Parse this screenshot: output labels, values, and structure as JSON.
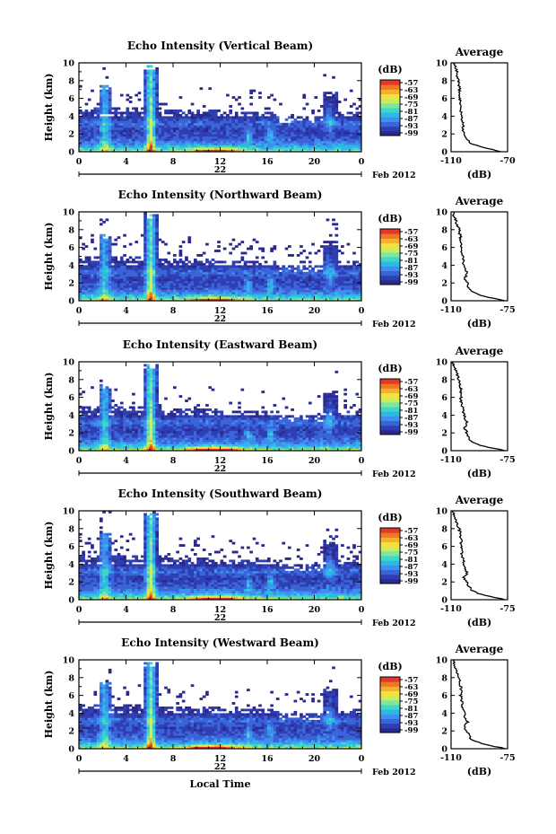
{
  "chart_data": [
    {
      "type": "heatmap",
      "title": "Echo Intensity (Vertical Beam)",
      "ylabel": "Height (km)",
      "xticks": [
        "0",
        "4",
        "8",
        "12",
        "16",
        "20",
        "0"
      ],
      "xlim": [
        0,
        24
      ],
      "yticks": [
        "0",
        "2",
        "4",
        "6",
        "8",
        "10"
      ],
      "ylim": [
        0,
        10
      ],
      "day_label": "22",
      "month_label": "Feb 2012",
      "colorbar_unit": "(dB)",
      "colorbar_ticks": [
        "-57",
        "-63",
        "-69",
        "-75",
        "-81",
        "-87",
        "-93",
        "-99"
      ],
      "average_title": "Average",
      "average_xlabel": "(dB)",
      "average_xticks": [
        "-110",
        "-70"
      ],
      "average_xlim": [
        -110,
        -70
      ],
      "average_profile": {
        "height_km": [
          0,
          0.5,
          1,
          1.5,
          2,
          2.5,
          3,
          4,
          5,
          6,
          7,
          8,
          9,
          10
        ],
        "db": [
          -74,
          -88,
          -97,
          -99,
          -101,
          -102,
          -101,
          -103,
          -103,
          -104,
          -104,
          -105,
          -106,
          -108
        ]
      }
    },
    {
      "type": "heatmap",
      "title": "Echo Intensity (Northward Beam)",
      "ylabel": "Height (km)",
      "xticks": [
        "0",
        "4",
        "8",
        "12",
        "16",
        "20",
        "0"
      ],
      "xlim": [
        0,
        24
      ],
      "yticks": [
        "0",
        "2",
        "4",
        "6",
        "8",
        "10"
      ],
      "ylim": [
        0,
        10
      ],
      "day_label": "22",
      "month_label": "Feb 2012",
      "colorbar_unit": "(dB)",
      "colorbar_ticks": [
        "-57",
        "-63",
        "-69",
        "-75",
        "-81",
        "-87",
        "-93",
        "-99"
      ],
      "average_title": "Average",
      "average_xlabel": "(dB)",
      "average_xticks": [
        "-110",
        "-75"
      ],
      "average_xlim": [
        -110,
        -75
      ],
      "average_profile": {
        "height_km": [
          0,
          0.5,
          1,
          1.5,
          2,
          2.5,
          3,
          4,
          5,
          6,
          7,
          8,
          9,
          10
        ],
        "db": [
          -76,
          -90,
          -97,
          -99,
          -100,
          -102,
          -100,
          -102,
          -103,
          -104,
          -104,
          -105,
          -107,
          -109
        ]
      }
    },
    {
      "type": "heatmap",
      "title": "Echo Intensity (Eastward Beam)",
      "ylabel": "Height (km)",
      "xticks": [
        "0",
        "4",
        "8",
        "12",
        "16",
        "20",
        "0"
      ],
      "xlim": [
        0,
        24
      ],
      "yticks": [
        "0",
        "2",
        "4",
        "6",
        "8",
        "10"
      ],
      "ylim": [
        0,
        10
      ],
      "day_label": "22",
      "month_label": "Feb 2012",
      "colorbar_unit": "(dB)",
      "colorbar_ticks": [
        "-57",
        "-63",
        "-69",
        "-75",
        "-81",
        "-87",
        "-93",
        "-99"
      ],
      "average_title": "Average",
      "average_xlabel": "(dB)",
      "average_xticks": [
        "-110",
        "-75"
      ],
      "average_xlim": [
        -110,
        -75
      ],
      "average_profile": {
        "height_km": [
          0,
          0.5,
          1,
          1.5,
          2,
          2.5,
          3,
          4,
          5,
          6,
          7,
          8,
          9,
          10
        ],
        "db": [
          -76,
          -90,
          -97,
          -99,
          -100,
          -102,
          -100,
          -102,
          -103,
          -104,
          -104,
          -105,
          -107,
          -109
        ]
      }
    },
    {
      "type": "heatmap",
      "title": "Echo Intensity (Southward Beam)",
      "ylabel": "Height (km)",
      "xticks": [
        "0",
        "4",
        "8",
        "12",
        "16",
        "20",
        "0"
      ],
      "xlim": [
        0,
        24
      ],
      "yticks": [
        "0",
        "2",
        "4",
        "6",
        "8",
        "10"
      ],
      "ylim": [
        0,
        10
      ],
      "day_label": "22",
      "month_label": "Feb 2012",
      "colorbar_unit": "(dB)",
      "colorbar_ticks": [
        "-57",
        "-63",
        "-69",
        "-75",
        "-81",
        "-87",
        "-93",
        "-99"
      ],
      "average_title": "Average",
      "average_xlabel": "(dB)",
      "average_xticks": [
        "-110",
        "-75"
      ],
      "average_xlim": [
        -110,
        -75
      ],
      "average_profile": {
        "height_km": [
          0,
          0.5,
          1,
          1.5,
          2,
          2.5,
          3,
          4,
          5,
          6,
          7,
          8,
          9,
          10
        ],
        "db": [
          -76,
          -90,
          -97,
          -99,
          -100,
          -102,
          -100,
          -102,
          -103,
          -104,
          -104,
          -105,
          -107,
          -109
        ]
      }
    },
    {
      "type": "heatmap",
      "title": "Echo Intensity (Westward Beam)",
      "ylabel": "Height (km)",
      "xticks": [
        "0",
        "4",
        "8",
        "12",
        "16",
        "20",
        "0"
      ],
      "xlim": [
        0,
        24
      ],
      "yticks": [
        "0",
        "2",
        "4",
        "6",
        "8",
        "10"
      ],
      "ylim": [
        0,
        10
      ],
      "day_label": "22",
      "month_label": "Feb 2012",
      "xlabel": "Local Time",
      "colorbar_unit": "(dB)",
      "colorbar_ticks": [
        "-57",
        "-63",
        "-69",
        "-75",
        "-81",
        "-87",
        "-93",
        "-99"
      ],
      "average_title": "Average",
      "average_xlabel": "(dB)",
      "average_xticks": [
        "-110",
        "-75"
      ],
      "average_xlim": [
        -110,
        -75
      ],
      "average_profile": {
        "height_km": [
          0,
          0.5,
          1,
          1.5,
          2,
          2.5,
          3,
          4,
          5,
          6,
          7,
          8,
          9,
          10
        ],
        "db": [
          -76,
          -90,
          -97,
          -99,
          -100,
          -102,
          -100,
          -102,
          -103,
          -104,
          -104,
          -105,
          -107,
          -109
        ]
      }
    }
  ],
  "colormap": [
    "#2b2a8c",
    "#2f3fb3",
    "#3a64d8",
    "#3f8ff0",
    "#2fb8e6",
    "#3fd7c8",
    "#7fe6a0",
    "#c8ee60",
    "#f4e040",
    "#f6b030",
    "#f07820",
    "#e0382a"
  ]
}
